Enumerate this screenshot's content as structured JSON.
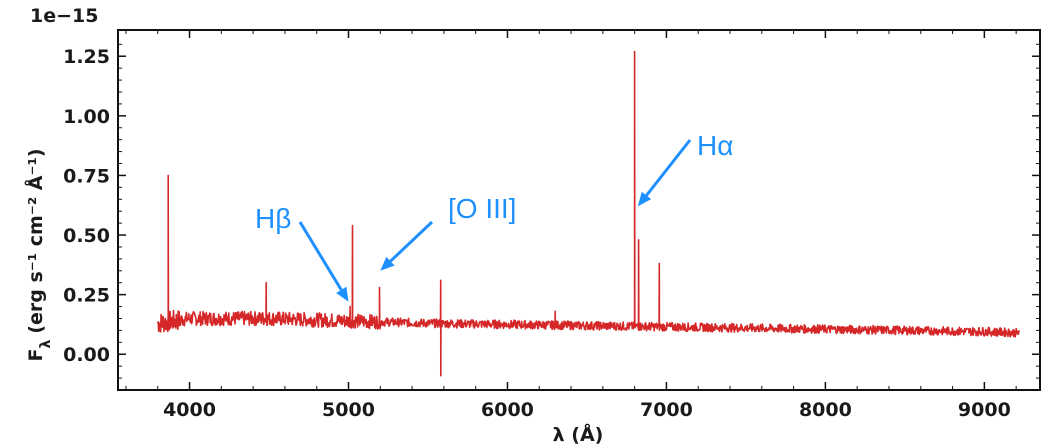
{
  "chart_data": {
    "type": "line",
    "title": "",
    "xlabel": "λ (Å)",
    "ylabel_parts": {
      "prefix": "F",
      "subscript": "λ",
      "units": "(erg s⁻¹ cm⁻² Å⁻¹)"
    },
    "y_offset_label": "1e−15",
    "xlim": [
      3550,
      9350
    ],
    "ylim": [
      -0.15,
      1.36
    ],
    "x_ticks": [
      4000,
      5000,
      6000,
      7000,
      8000,
      9000
    ],
    "x_tick_labels": [
      "4000",
      "5000",
      "6000",
      "7000",
      "8000",
      "9000"
    ],
    "y_ticks": [
      0.0,
      0.25,
      0.5,
      0.75,
      1.0,
      1.25
    ],
    "y_tick_labels": [
      "0.00",
      "0.25",
      "0.50",
      "0.75",
      "1.00",
      "1.25"
    ],
    "grid": false,
    "legend": "none",
    "series": [
      {
        "color": "#d62728",
        "x_range": [
          3800,
          9220
        ],
        "continuum": [
          [
            3800,
            0.13
          ],
          [
            4000,
            0.15
          ],
          [
            4500,
            0.15
          ],
          [
            5000,
            0.14
          ],
          [
            5500,
            0.13
          ],
          [
            6000,
            0.125
          ],
          [
            6500,
            0.12
          ],
          [
            7000,
            0.115
          ],
          [
            7500,
            0.11
          ],
          [
            8000,
            0.105
          ],
          [
            8500,
            0.1
          ],
          [
            9000,
            0.095
          ],
          [
            9220,
            0.09
          ]
        ],
        "lines": [
          {
            "x": 3866,
            "peak": 0.75
          },
          {
            "x": 4482,
            "peak": 0.3
          },
          {
            "x": 5010,
            "peak": 0.2
          },
          {
            "x": 5025,
            "peak": 0.54
          },
          {
            "x": 5195,
            "peak": 0.28
          },
          {
            "x": 5580,
            "peak": 0.31,
            "trough": -0.09
          },
          {
            "x": 6300,
            "peak": 0.18
          },
          {
            "x": 6800,
            "peak": 1.27
          },
          {
            "x": 6825,
            "peak": 0.48
          },
          {
            "x": 6955,
            "peak": 0.38
          }
        ]
      }
    ],
    "annotations": [
      {
        "text": "Hβ",
        "color": "#1e90ff",
        "target_x": 5000,
        "target_y": 0.22
      },
      {
        "text": "[O III]",
        "color": "#1e90ff",
        "target_x": 5200,
        "target_y": 0.35
      },
      {
        "text": "Hα",
        "color": "#1e90ff",
        "target_x": 6820,
        "target_y": 0.62
      }
    ]
  }
}
